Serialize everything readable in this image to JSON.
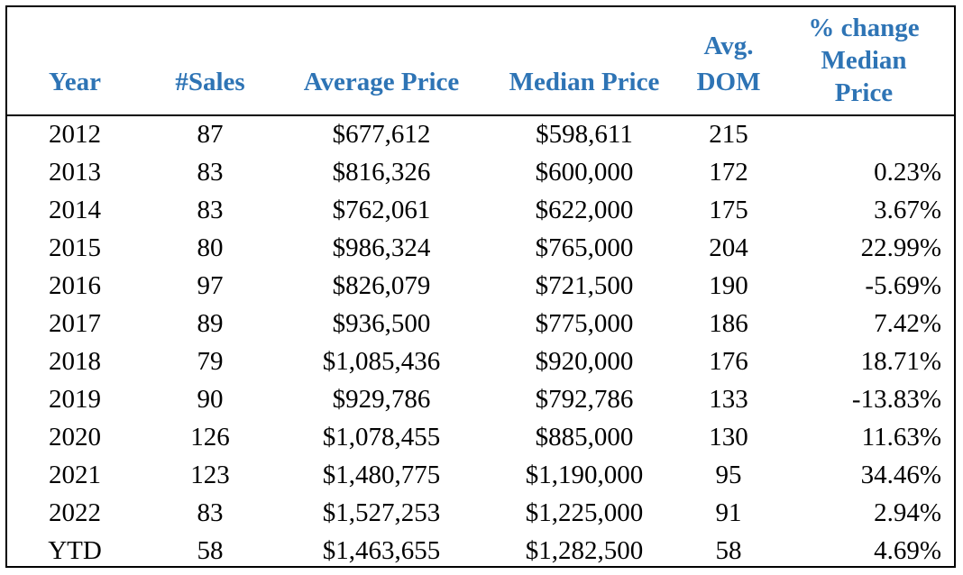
{
  "columns": {
    "year": "Year",
    "sales": "#Sales",
    "average_price": "Average Price",
    "median_price": "Median Price",
    "dom_line1": "Avg.",
    "dom_line2": "DOM",
    "pct_line1": "% change",
    "pct_line2": "Median",
    "pct_line3": "Price"
  },
  "rows": [
    {
      "year": "2012",
      "sales": "87",
      "average_price": "$677,612",
      "median_price": "$598,611",
      "dom": "215",
      "pct_change": ""
    },
    {
      "year": "2013",
      "sales": "83",
      "average_price": "$816,326",
      "median_price": "$600,000",
      "dom": "172",
      "pct_change": "0.23%"
    },
    {
      "year": "2014",
      "sales": "83",
      "average_price": "$762,061",
      "median_price": "$622,000",
      "dom": "175",
      "pct_change": "3.67%"
    },
    {
      "year": "2015",
      "sales": "80",
      "average_price": "$986,324",
      "median_price": "$765,000",
      "dom": "204",
      "pct_change": "22.99%"
    },
    {
      "year": "2016",
      "sales": "97",
      "average_price": "$826,079",
      "median_price": "$721,500",
      "dom": "190",
      "pct_change": "-5.69%"
    },
    {
      "year": "2017",
      "sales": "89",
      "average_price": "$936,500",
      "median_price": "$775,000",
      "dom": "186",
      "pct_change": "7.42%"
    },
    {
      "year": "2018",
      "sales": "79",
      "average_price": "$1,085,436",
      "median_price": "$920,000",
      "dom": "176",
      "pct_change": "18.71%"
    },
    {
      "year": "2019",
      "sales": "90",
      "average_price": "$929,786",
      "median_price": "$792,786",
      "dom": "133",
      "pct_change": "-13.83%"
    },
    {
      "year": "2020",
      "sales": "126",
      "average_price": "$1,078,455",
      "median_price": "$885,000",
      "dom": "130",
      "pct_change": "11.63%"
    },
    {
      "year": "2021",
      "sales": "123",
      "average_price": "$1,480,775",
      "median_price": "$1,190,000",
      "dom": "95",
      "pct_change": "34.46%"
    },
    {
      "year": "2022",
      "sales": "83",
      "average_price": "$1,527,253",
      "median_price": "$1,225,000",
      "dom": "91",
      "pct_change": "2.94%"
    },
    {
      "year": "YTD",
      "sales": "58",
      "average_price": "$1,463,655",
      "median_price": "$1,282,500",
      "dom": "58",
      "pct_change": "4.69%"
    }
  ],
  "colors": {
    "header_text": "#2e74b5",
    "border": "#000000"
  }
}
